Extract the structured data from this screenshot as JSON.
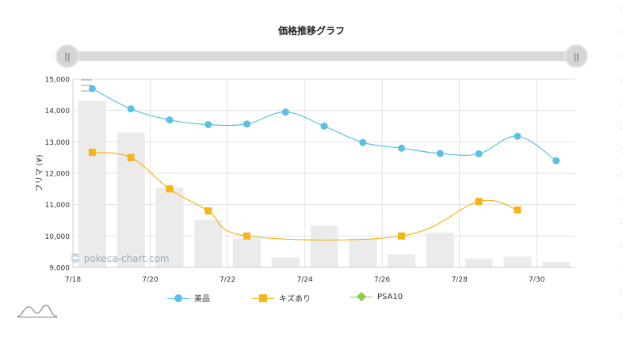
{
  "chart_data": {
    "type": "line",
    "title": "価格推移グラフ",
    "ylabel": "フリマ (¥)",
    "xlabel": "",
    "ylim": [
      9000,
      15000
    ],
    "yticks": [
      "9,000",
      "10,000",
      "11,000",
      "12,000",
      "13,000",
      "14,000",
      "15,000"
    ],
    "x_start": "7/18",
    "x_end": "7/31",
    "xticks": [
      "7/18",
      "7/20",
      "7/22",
      "7/24",
      "7/26",
      "7/28",
      "7/30"
    ],
    "grid": true,
    "legend_position": "bottom",
    "series": [
      {
        "name": "美品",
        "color": "#5bc0e6",
        "marker": "circle",
        "x": [
          "7/18",
          "7/19",
          "7/20",
          "7/21",
          "7/22",
          "7/23",
          "7/24",
          "7/25",
          "7/26",
          "7/27",
          "7/28",
          "7/29",
          "7/30"
        ],
        "values": [
          14700,
          14050,
          13700,
          13550,
          13570,
          13950,
          13500,
          12980,
          12800,
          12630,
          12620,
          13180,
          12400
        ]
      },
      {
        "name": "キズあり",
        "color": "#f5b31c",
        "marker": "square",
        "x": [
          "7/18",
          "7/19",
          "7/20",
          "7/21",
          "7/22",
          "7/26",
          "7/28",
          "7/29"
        ],
        "values": [
          12670,
          12500,
          11500,
          10800,
          10000,
          10000,
          11100,
          10830
        ]
      },
      {
        "name": "PSA10",
        "color": "#8ccf3d",
        "marker": "diamond",
        "x": [],
        "values": []
      }
    ],
    "volume_bars": {
      "color": "#ebebeb",
      "x": [
        "7/18",
        "7/19",
        "7/20",
        "7/21",
        "7/22",
        "7/23",
        "7/24",
        "7/25",
        "7/26",
        "7/27",
        "7/28",
        "7/29",
        "7/30"
      ],
      "values": [
        14300,
        13300,
        11550,
        10520,
        9920,
        9320,
        10330,
        9920,
        9420,
        10100,
        9280,
        9340,
        9170
      ]
    }
  },
  "watermark": "pokeca-chart.com",
  "slider": {
    "left_handle": "||",
    "right_handle": "||"
  }
}
